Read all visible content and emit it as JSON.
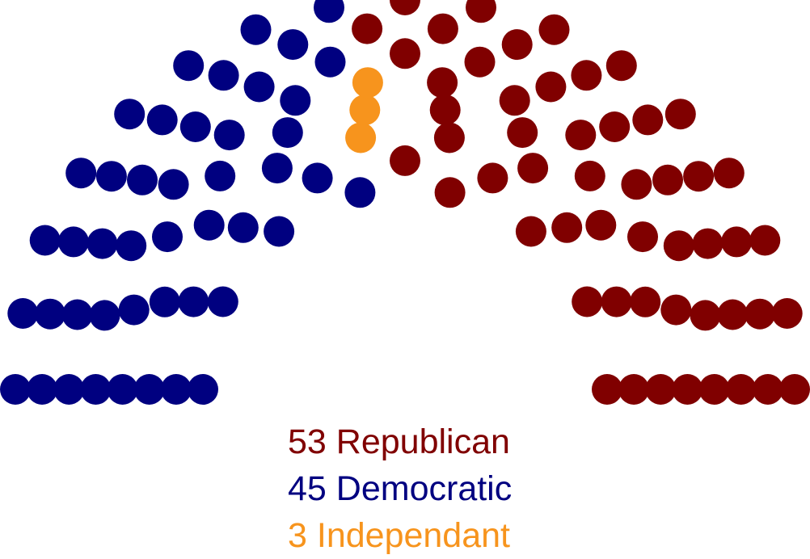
{
  "chart_data": {
    "type": "parliament",
    "total_seats": 101,
    "rows": 8,
    "series": [
      {
        "name": "Democratic",
        "value": 45,
        "color": "#000080"
      },
      {
        "name": "Independant",
        "value": 3,
        "color": "#f7941d"
      },
      {
        "name": "Republican",
        "value": 53,
        "color": "#800000"
      }
    ],
    "legend": [
      {
        "count": "53",
        "label": "Republican",
        "color": "#800000"
      },
      {
        "count": "45",
        "label": "Democratic",
        "color": "#000080"
      },
      {
        "count": "3",
        "label": "Independant",
        "color": "#f7941d"
      }
    ]
  }
}
